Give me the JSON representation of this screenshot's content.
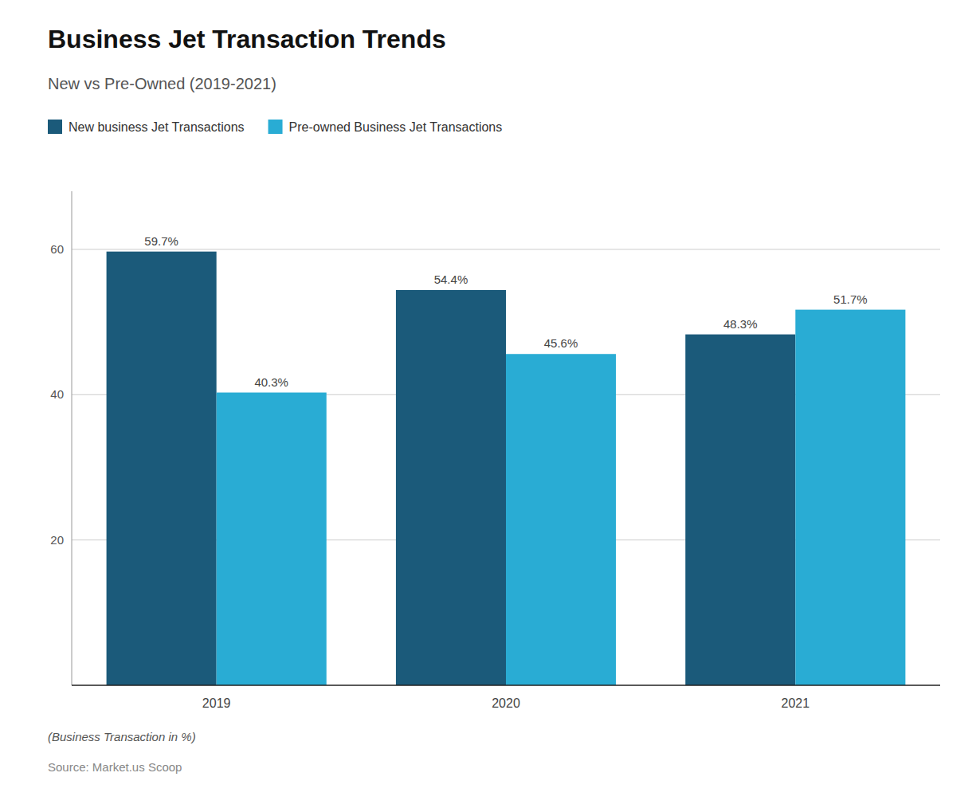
{
  "chart_data": {
    "type": "bar",
    "title": "Business Jet Transaction Trends",
    "subtitle": "New vs Pre-Owned (2019-2021)",
    "categories": [
      "2019",
      "2020",
      "2021"
    ],
    "series": [
      {
        "name": "New business Jet Transactions",
        "color": "#1B5A7A",
        "values": [
          59.7,
          54.4,
          48.3
        ],
        "value_labels": [
          "59.7%",
          "54.4%",
          "48.3%"
        ]
      },
      {
        "name": "Pre-owned Business Jet Transactions",
        "color": "#29ACD4",
        "values": [
          40.3,
          45.6,
          51.7
        ],
        "value_labels": [
          "40.3%",
          "45.6%",
          "51.7%"
        ]
      }
    ],
    "ylim": [
      0,
      68
    ],
    "yticks": [
      20,
      40,
      60
    ],
    "grid": true,
    "legend": "top",
    "data_labels": true,
    "footnote": "(Business Transaction in %)",
    "source": "Source: Market.us Scoop"
  }
}
